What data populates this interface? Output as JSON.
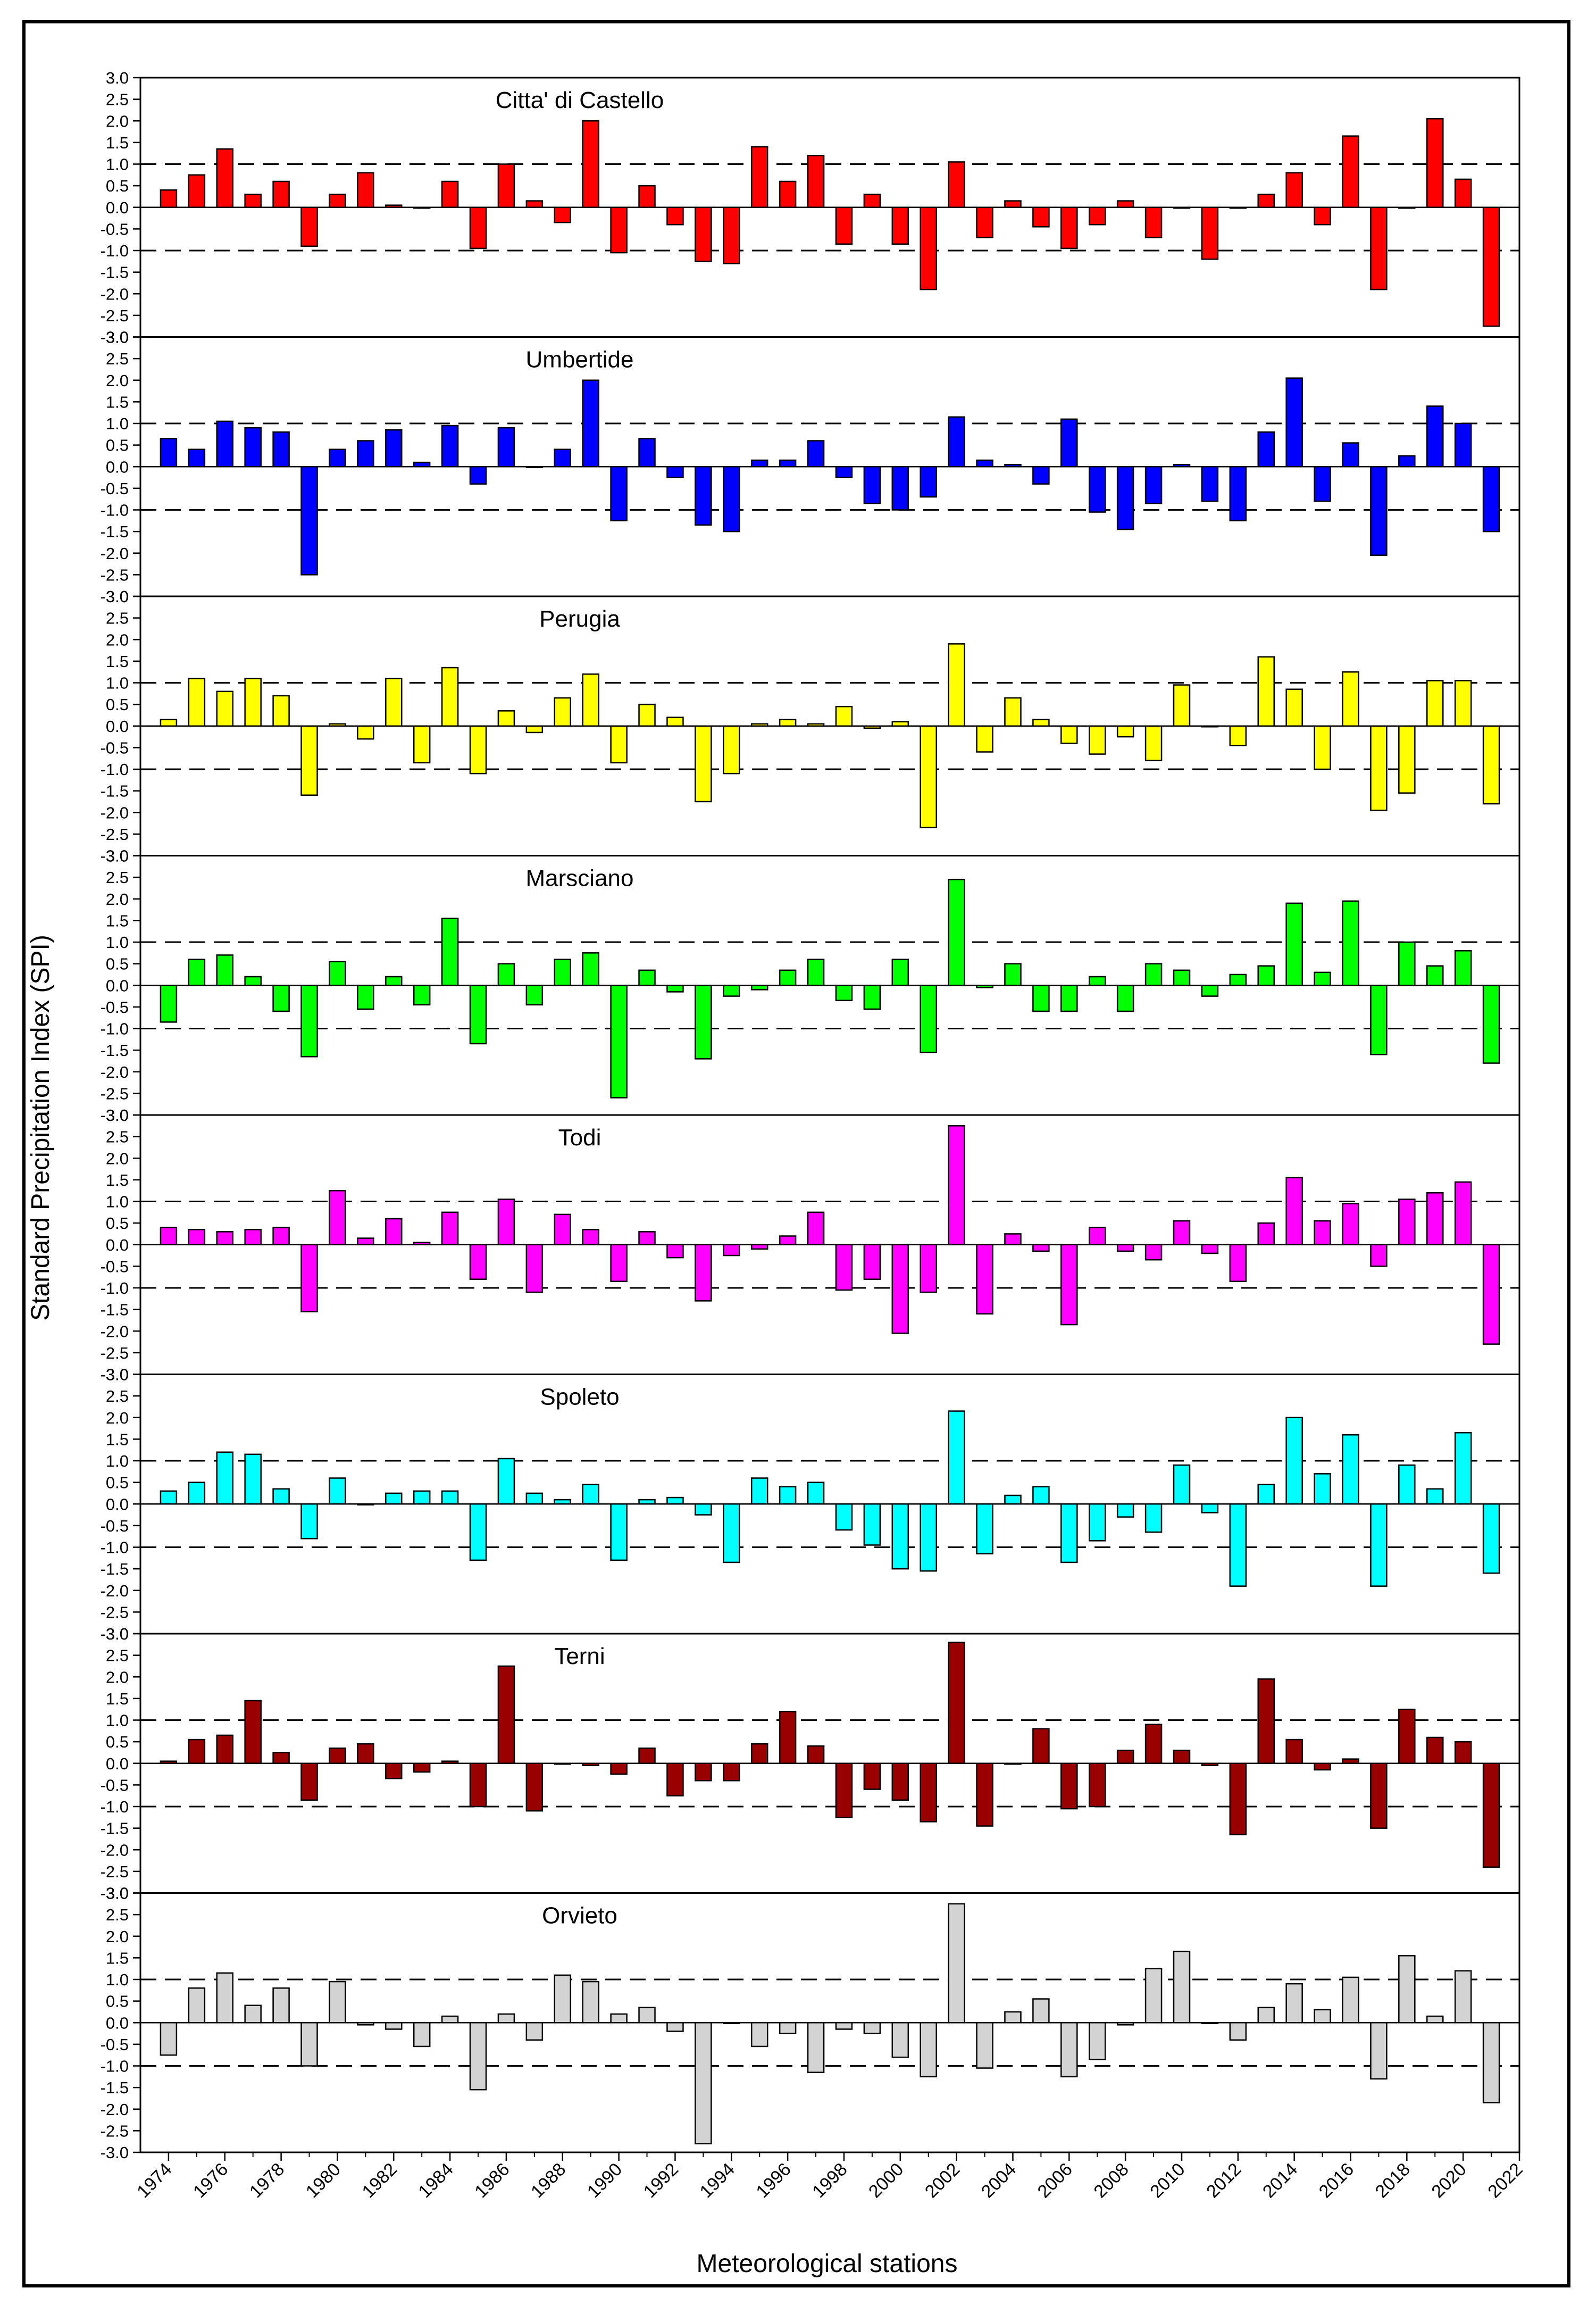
{
  "chart_data": {
    "type": "bar",
    "xlabel": "Meteorological stations",
    "ylabel": "Standard Precipitation Index (SPI)",
    "ylim": [
      -3,
      3
    ],
    "yticks": [
      "3.0",
      "2.5",
      "2.0",
      "1.5",
      "1.0",
      "0.5",
      "0.0",
      "-0.5",
      "-1.0",
      "-1.5",
      "-2.0",
      "-2.5",
      "-3.0"
    ],
    "x_ticks": [
      "1974",
      "1976",
      "1978",
      "1980",
      "1982",
      "1984",
      "1986",
      "1988",
      "1990",
      "1992",
      "1994",
      "1996",
      "1998",
      "2000",
      "2002",
      "2004",
      "2006",
      "2008",
      "2010",
      "2012",
      "2014",
      "2016",
      "2018",
      "2020",
      "2022"
    ],
    "reference_lines": [
      1.0,
      -1.0
    ],
    "years": [
      1974,
      1975,
      1976,
      1977,
      1978,
      1979,
      1980,
      1981,
      1982,
      1983,
      1984,
      1985,
      1986,
      1987,
      1988,
      1989,
      1990,
      1991,
      1992,
      1993,
      1994,
      1995,
      1996,
      1997,
      1998,
      1999,
      2000,
      2001,
      2002,
      2003,
      2004,
      2005,
      2006,
      2007,
      2008,
      2009,
      2010,
      2011,
      2012,
      2013,
      2014,
      2015,
      2016,
      2017,
      2018,
      2019,
      2020,
      2021
    ],
    "series": [
      {
        "name": "Citta' di Castello",
        "color": "#ff0000",
        "values": [
          0.4,
          0.75,
          1.35,
          0.3,
          0.6,
          -0.9,
          0.3,
          0.8,
          0.05,
          0.0,
          0.6,
          -0.95,
          1.0,
          0.15,
          -0.35,
          2.0,
          -1.05,
          0.5,
          -0.4,
          -1.25,
          -1.3,
          1.4,
          0.6,
          1.2,
          -0.85,
          0.3,
          -0.85,
          -1.9,
          1.05,
          -0.7,
          0.15,
          -0.45,
          -0.95,
          -0.4,
          0.15,
          -0.7,
          0.0,
          -1.2,
          0.0,
          0.3,
          0.8,
          -0.4,
          1.65,
          -1.9,
          0.0,
          2.05,
          0.65,
          -2.75
        ]
      },
      {
        "name": "Umbertide",
        "color": "#0000ff",
        "values": [
          0.65,
          0.4,
          1.05,
          0.9,
          0.8,
          -2.5,
          0.4,
          0.6,
          0.85,
          0.1,
          0.95,
          -0.4,
          0.9,
          0.0,
          0.4,
          2.0,
          -1.25,
          0.65,
          -0.25,
          -1.35,
          -1.5,
          0.15,
          0.15,
          0.6,
          -0.25,
          -0.85,
          -1.0,
          -0.7,
          1.15,
          0.15,
          0.05,
          -0.4,
          1.1,
          -1.05,
          -1.45,
          -0.85,
          0.05,
          -0.8,
          -1.25,
          0.8,
          2.05,
          -0.8,
          0.55,
          -2.05,
          0.25,
          1.4,
          1.0,
          -1.5
        ]
      },
      {
        "name": "Perugia",
        "color": "#ffff00",
        "values": [
          0.15,
          1.1,
          0.8,
          1.1,
          0.7,
          -1.6,
          0.05,
          -0.3,
          1.1,
          -0.85,
          1.35,
          -1.1,
          0.35,
          -0.15,
          0.65,
          1.2,
          -0.85,
          0.5,
          0.2,
          -1.75,
          -1.1,
          0.05,
          0.15,
          0.05,
          0.45,
          -0.05,
          0.1,
          -2.35,
          1.9,
          -0.6,
          0.65,
          0.15,
          -0.4,
          -0.65,
          -0.25,
          -0.8,
          0.95,
          0.0,
          -0.45,
          1.6,
          0.85,
          -1.0,
          1.25,
          -1.95,
          -1.55,
          1.05,
          1.05,
          -1.8
        ]
      },
      {
        "name": "Marsciano",
        "color": "#00ff00",
        "values": [
          -0.85,
          0.6,
          0.7,
          0.2,
          -0.6,
          -1.65,
          0.55,
          -0.55,
          0.2,
          -0.45,
          1.55,
          -1.35,
          0.5,
          -0.45,
          0.6,
          0.75,
          -2.6,
          0.35,
          -0.15,
          -1.7,
          -0.25,
          -0.1,
          0.35,
          0.6,
          -0.35,
          -0.55,
          0.6,
          -1.55,
          2.45,
          -0.05,
          0.5,
          -0.6,
          -0.6,
          0.2,
          -0.6,
          0.5,
          0.35,
          -0.25,
          0.25,
          0.45,
          1.9,
          0.3,
          1.95,
          -1.6,
          1.0,
          0.45,
          0.8,
          -1.8
        ]
      },
      {
        "name": "Todi",
        "color": "#ff00ff",
        "values": [
          0.4,
          0.35,
          0.3,
          0.35,
          0.4,
          -1.55,
          1.25,
          0.15,
          0.6,
          0.05,
          0.75,
          -0.8,
          1.05,
          -1.1,
          0.7,
          0.35,
          -0.85,
          0.3,
          -0.3,
          -1.3,
          -0.25,
          -0.1,
          0.2,
          0.75,
          -1.05,
          -0.8,
          -2.05,
          -1.1,
          2.75,
          -1.6,
          0.25,
          -0.15,
          -1.85,
          0.4,
          -0.15,
          -0.35,
          0.55,
          -0.2,
          -0.85,
          0.5,
          1.55,
          0.55,
          0.95,
          -0.5,
          1.05,
          1.2,
          1.45,
          -2.3
        ]
      },
      {
        "name": "Spoleto",
        "color": "#00ffff",
        "values": [
          0.3,
          0.5,
          1.2,
          1.15,
          0.35,
          -0.8,
          0.6,
          0.0,
          0.25,
          0.3,
          0.3,
          -1.3,
          1.05,
          0.25,
          0.1,
          0.45,
          -1.3,
          0.1,
          0.15,
          -0.25,
          -1.35,
          0.6,
          0.4,
          0.5,
          -0.6,
          -0.95,
          -1.5,
          -1.55,
          2.15,
          -1.15,
          0.2,
          0.4,
          -1.35,
          -0.85,
          -0.3,
          -0.65,
          0.9,
          -0.2,
          -1.9,
          0.45,
          2.0,
          0.7,
          1.6,
          -1.9,
          0.9,
          0.35,
          1.65,
          -1.6
        ]
      },
      {
        "name": "Terni",
        "color": "#990000",
        "values": [
          0.05,
          0.55,
          0.65,
          1.45,
          0.25,
          -0.85,
          0.35,
          0.45,
          -0.35,
          -0.2,
          0.05,
          -1.0,
          2.25,
          -1.1,
          0.0,
          -0.05,
          -0.25,
          0.35,
          -0.75,
          -0.4,
          -0.4,
          0.45,
          1.2,
          0.4,
          -1.25,
          -0.6,
          -0.85,
          -1.35,
          2.8,
          -1.45,
          0.0,
          0.8,
          -1.05,
          -1.0,
          0.3,
          0.9,
          0.3,
          -0.05,
          -1.65,
          1.95,
          0.55,
          -0.15,
          0.1,
          -1.5,
          1.25,
          0.6,
          0.5,
          -2.4
        ]
      },
      {
        "name": "Orvieto",
        "color": "#d3d3d3",
        "values": [
          -0.75,
          0.8,
          1.15,
          0.4,
          0.8,
          -1.0,
          0.95,
          -0.05,
          -0.15,
          -0.55,
          0.15,
          -1.55,
          0.2,
          -0.4,
          1.1,
          0.95,
          0.2,
          0.35,
          -0.2,
          -2.8,
          0.0,
          -0.55,
          -0.25,
          -1.15,
          -0.15,
          -0.25,
          -0.8,
          -1.25,
          2.75,
          -1.05,
          0.25,
          0.55,
          -1.25,
          -0.85,
          -0.05,
          1.25,
          1.65,
          0.0,
          -0.4,
          0.35,
          0.9,
          0.3,
          1.05,
          -1.3,
          1.55,
          0.15,
          1.2,
          -1.85
        ]
      }
    ]
  }
}
